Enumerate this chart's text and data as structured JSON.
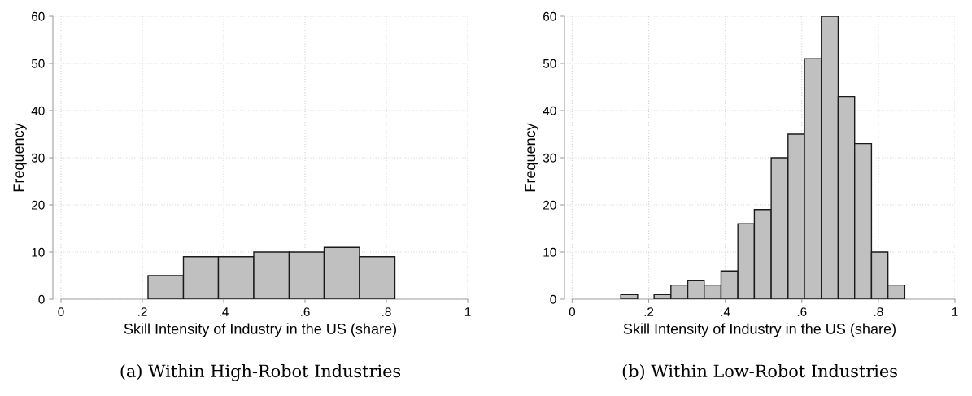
{
  "chart_data": [
    {
      "type": "histogram",
      "title": "(a) Within High-Robot Industries",
      "xlabel": "Skill Intensity of Industry in the US (share)",
      "ylabel": "Frequency",
      "bins": [
        0.214,
        0.301,
        0.387,
        0.474,
        0.561,
        0.647,
        0.734,
        0.821
      ],
      "values": [
        5,
        9,
        9,
        10,
        10,
        11,
        9
      ],
      "color": "#c0c0c0",
      "xlim": [
        -0.02,
        1.0
      ],
      "xticks": [
        {
          "value": 0,
          "label": "0"
        },
        {
          "value": 0.2,
          "label": ".2"
        },
        {
          "value": 0.4,
          "label": ".4"
        },
        {
          "value": 0.6,
          "label": ".6"
        },
        {
          "value": 0.8,
          "label": ".8"
        },
        {
          "value": 1,
          "label": "1"
        }
      ],
      "ylim": [
        0,
        60
      ],
      "yticks": [
        0,
        10,
        20,
        30,
        40,
        50,
        60
      ],
      "grid": true
    },
    {
      "type": "histogram",
      "title": "(b) Within Low-Robot Industries",
      "xlabel": "Skill Intensity of Industry in the US (share)",
      "ylabel": "Frequency",
      "bins": [
        0.127,
        0.171,
        0.214,
        0.258,
        0.302,
        0.345,
        0.389,
        0.433,
        0.476,
        0.52,
        0.564,
        0.607,
        0.651,
        0.695,
        0.738,
        0.782,
        0.825,
        0.869
      ],
      "values": [
        1,
        0,
        1,
        3,
        4,
        3,
        6,
        16,
        19,
        30,
        35,
        51,
        60,
        43,
        33,
        10,
        3
      ],
      "color": "#c0c0c0",
      "xlim": [
        -0.02,
        1.0
      ],
      "xticks": [
        {
          "value": 0,
          "label": "0"
        },
        {
          "value": 0.2,
          "label": ".2"
        },
        {
          "value": 0.4,
          "label": ".4"
        },
        {
          "value": 0.6,
          "label": ".6"
        },
        {
          "value": 0.8,
          "label": ".8"
        },
        {
          "value": 1,
          "label": "1"
        }
      ],
      "ylim": [
        0,
        60
      ],
      "yticks": [
        0,
        10,
        20,
        30,
        40,
        50,
        60
      ],
      "grid": true
    }
  ]
}
